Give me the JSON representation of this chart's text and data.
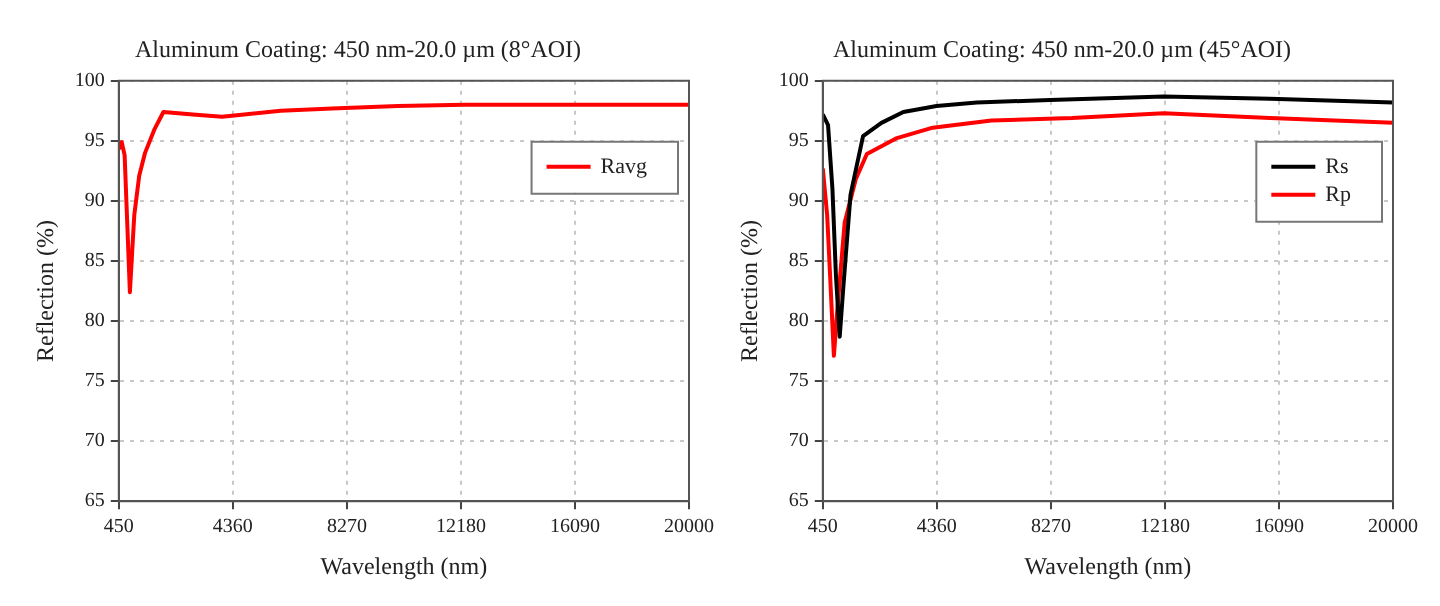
{
  "chart_data": [
    {
      "type": "line",
      "title": "Aluminum Coating: 450 nm-20.0 µm (8°AOI)",
      "xlabel": "Wavelength (nm)",
      "ylabel": "Reflection (%)",
      "xlim": [
        450,
        20000
      ],
      "xticks": [
        450,
        4360,
        8270,
        12180,
        16090,
        20000
      ],
      "ylim": [
        65,
        100
      ],
      "yticks": [
        65,
        70,
        75,
        80,
        85,
        90,
        95,
        100
      ],
      "grid": true,
      "legend": "top right",
      "marker": "none",
      "line_style": "solid",
      "series": [
        {
          "name": "Ravg",
          "color": "#ff0000",
          "x": [
            450,
            550,
            650,
            830,
            980,
            1150,
            1350,
            1680,
            1980,
            2990,
            3990,
            4750,
            6000,
            7760,
            10020,
            12280,
            20000
          ],
          "values": [
            94.3,
            94.9,
            93.8,
            82.4,
            88.8,
            92.1,
            94.0,
            96.0,
            97.4,
            97.2,
            97.0,
            97.2,
            97.5,
            97.7,
            97.9,
            98.0,
            98.0
          ]
        }
      ]
    },
    {
      "type": "line",
      "title": "Aluminum Coating: 450 nm-20.0 µm (45°AOI)",
      "xlabel": "Wavelength (nm)",
      "ylabel": "Reflection (%)",
      "xlim": [
        450,
        20000
      ],
      "xticks": [
        450,
        4360,
        8270,
        12180,
        16090,
        20000
      ],
      "ylim": [
        65,
        100
      ],
      "yticks": [
        65,
        70,
        75,
        80,
        85,
        90,
        95,
        100
      ],
      "grid": true,
      "legend": "top right",
      "marker": "none",
      "line_style": "solid",
      "series": [
        {
          "name": "Rs",
          "color": "#000000",
          "x": [
            450,
            630,
            780,
            900,
            1030,
            1150,
            1400,
            1830,
            2460,
            3210,
            4350,
            5730,
            8240,
            12140,
            15780,
            20000
          ],
          "values": [
            97.2,
            96.3,
            91.0,
            83.8,
            78.7,
            82.7,
            90.5,
            95.4,
            96.5,
            97.4,
            97.9,
            98.2,
            98.4,
            98.7,
            98.5,
            98.2
          ]
        },
        {
          "name": "Rp",
          "color": "#ff0000",
          "x": [
            450,
            600,
            700,
            830,
            950,
            1200,
            1580,
            1960,
            2960,
            4220,
            6230,
            8990,
            12140,
            15780,
            20000
          ],
          "values": [
            92.7,
            88.8,
            83.8,
            77.1,
            81.0,
            88.2,
            91.8,
            93.9,
            95.2,
            96.1,
            96.7,
            96.9,
            97.3,
            96.9,
            96.5
          ]
        }
      ]
    }
  ]
}
